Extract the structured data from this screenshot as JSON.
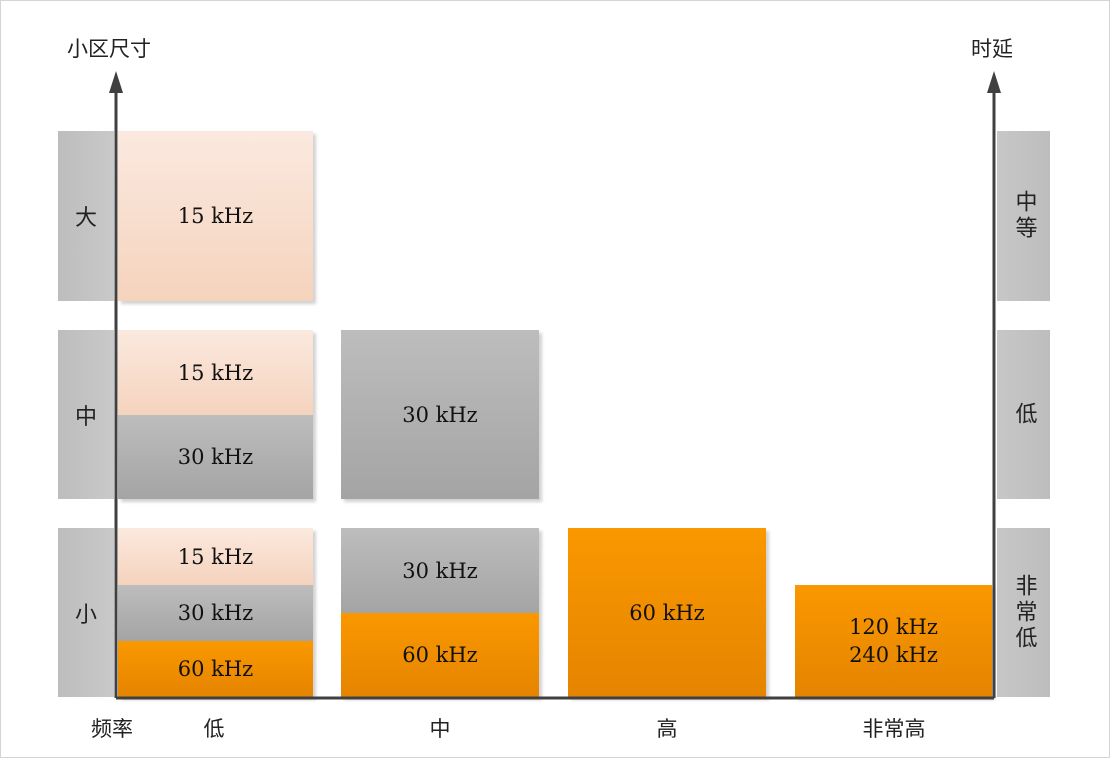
{
  "axes": {
    "cell_size_title": "小区尺寸",
    "latency_title": "时延",
    "frequency_title": "频率"
  },
  "cell_size_levels": [
    "大",
    "中",
    "小"
  ],
  "latency_levels": [
    "中等",
    "低",
    "非常低"
  ],
  "frequency_levels": [
    "低",
    "中",
    "高",
    "非常高"
  ],
  "grid": {
    "large_low": [
      "15 kHz"
    ],
    "medium_low": [
      "15 kHz",
      "30 kHz"
    ],
    "medium_mid": [
      "30 kHz"
    ],
    "small_low": [
      "15 kHz",
      "30 kHz",
      "60 kHz"
    ],
    "small_mid": [
      "30 kHz",
      "60 kHz"
    ],
    "small_high": [
      "60 kHz"
    ],
    "small_very_high": "120 kHz\n240 kHz"
  },
  "colors": {
    "kHz15": "#f8dfcf",
    "kHz30": "#b0b0b0",
    "kHz60_and_up": "#f39200",
    "axis": "#404040"
  }
}
